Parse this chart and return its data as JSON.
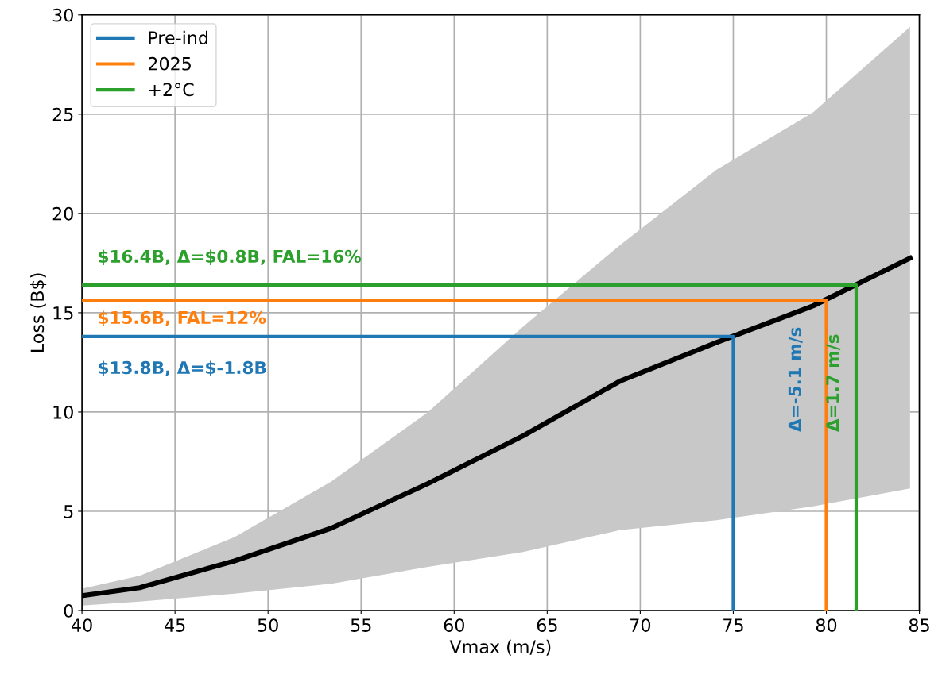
{
  "chart_data": {
    "type": "line",
    "xlabel": "Vmax (m/s)",
    "ylabel": "Loss (B$)",
    "xlim": [
      40,
      85
    ],
    "ylim": [
      0,
      30
    ],
    "xticks": [
      40,
      45,
      50,
      55,
      60,
      65,
      70,
      75,
      80,
      85
    ],
    "yticks": [
      0,
      5,
      10,
      15,
      20,
      25,
      30
    ],
    "grid": true,
    "legend": "top left",
    "series": [
      {
        "color": "#000000",
        "x": [
          40,
          43.1,
          48.2,
          53.4,
          58.6,
          63.7,
          68.9,
          74.1,
          79.3,
          84.5
        ],
        "values": [
          0.75,
          1.15,
          2.5,
          4.15,
          6.4,
          8.8,
          11.55,
          13.5,
          15.35,
          17.75
        ],
        "lower": [
          0.25,
          0.45,
          0.85,
          1.35,
          2.2,
          2.95,
          4.05,
          4.55,
          5.25,
          6.15
        ],
        "upper": [
          1.1,
          1.75,
          3.7,
          6.5,
          10,
          14.3,
          18.4,
          22.2,
          25.1,
          29.4
        ]
      },
      {
        "name": "Pre-ind",
        "color": "#1f77b4",
        "x": [
          40,
          75,
          75
        ],
        "values": [
          13.8,
          13.8,
          0
        ]
      },
      {
        "name": "2025",
        "color": "#ff7f0e",
        "x": [
          40,
          80,
          80
        ],
        "values": [
          15.6,
          15.6,
          0
        ]
      },
      {
        "name": "+2°C",
        "color": "#2ca02c",
        "x": [
          40,
          81.6,
          81.6
        ],
        "values": [
          16.4,
          16.4,
          0
        ]
      }
    ],
    "annotations": [
      "$16.4B, Δ=$0.8B, FAL=16%",
      "$15.6B, FAL=12%",
      "$13.8B, Δ=$-1.8B",
      "Δ=-5.1 m/s",
      "Δ=1.7 m/s"
    ]
  }
}
